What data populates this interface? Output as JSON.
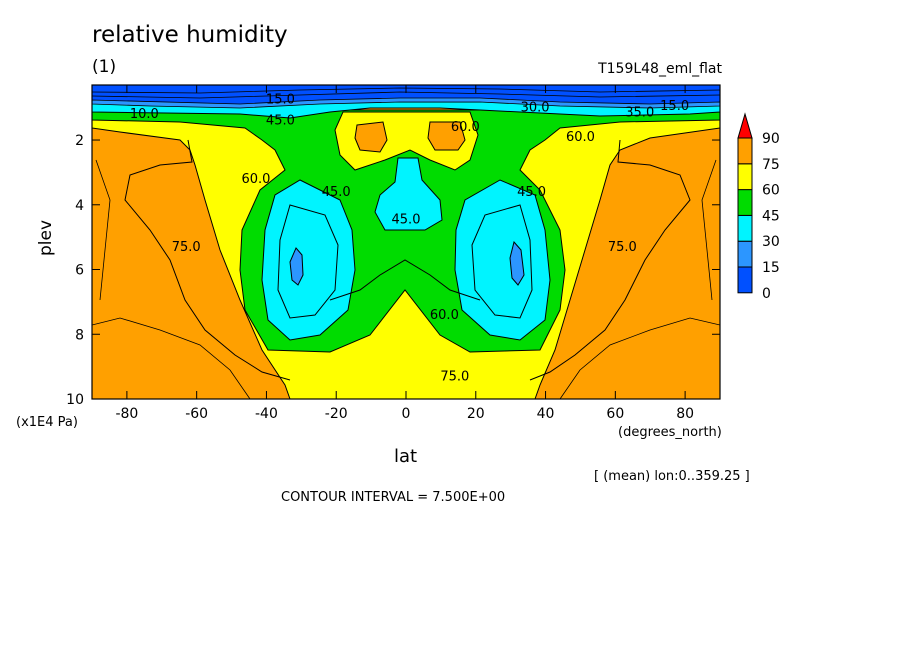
{
  "chart_data": {
    "type": "heatmap",
    "title": "relative humidity",
    "subtitle": "(1)",
    "run_name": "T159L48_eml_flat",
    "xlabel": "lat",
    "xunits": "(degrees_north)",
    "ylabel": "plev",
    "yunits": "(x1E4 Pa)",
    "xlim": [
      -90,
      90
    ],
    "ylim": [
      10,
      0.3
    ],
    "x_ticks": [
      "-80",
      "-60",
      "-40",
      "-20",
      "0",
      "20",
      "40",
      "60",
      "80"
    ],
    "x_tick_values": [
      -80,
      -60,
      -40,
      -20,
      0,
      20,
      40,
      60,
      80
    ],
    "y_ticks": [
      "2",
      "4",
      "6",
      "8",
      "10"
    ],
    "y_tick_values": [
      2,
      4,
      6,
      8,
      10
    ],
    "colorbar": {
      "levels": [
        "0",
        "15",
        "30",
        "45",
        "60",
        "75",
        "90"
      ],
      "colors": [
        "#0050ff",
        "#2c96ff",
        "#00f4ff",
        "#00dc00",
        "#ffff00",
        "#ffa000",
        "#ff0000"
      ]
    },
    "contour_labels": [
      {
        "text": "15.0",
        "lat": -36,
        "p": 0.75
      },
      {
        "text": "10.0",
        "lat": -75,
        "p": 1.2
      },
      {
        "text": "45.0",
        "lat": -36,
        "p": 1.4
      },
      {
        "text": "60.0",
        "lat": -43,
        "p": 3.2
      },
      {
        "text": "45.0",
        "lat": -20,
        "p": 3.6
      },
      {
        "text": "75.0",
        "lat": -63,
        "p": 5.3
      },
      {
        "text": "45.0",
        "lat": 0,
        "p": 4.45
      },
      {
        "text": "60.0",
        "lat": 17,
        "p": 1.6
      },
      {
        "text": "30.0",
        "lat": 37,
        "p": 1.0
      },
      {
        "text": "60.0",
        "lat": 50,
        "p": 1.9
      },
      {
        "text": "45.0",
        "lat": 36,
        "p": 3.6
      },
      {
        "text": "15.0",
        "lat": 77,
        "p": 0.95
      },
      {
        "text": "35.0",
        "lat": 67,
        "p": 1.15
      },
      {
        "text": "75.0",
        "lat": 62,
        "p": 5.3
      },
      {
        "text": "60.0",
        "lat": 11,
        "p": 7.4
      },
      {
        "text": "75.0",
        "lat": 14,
        "p": 9.3
      }
    ],
    "meaning": "[ (mean) lon:0..359.25 ]",
    "contour_interval": "CONTOUR INTERVAL = 7.500E+00"
  }
}
